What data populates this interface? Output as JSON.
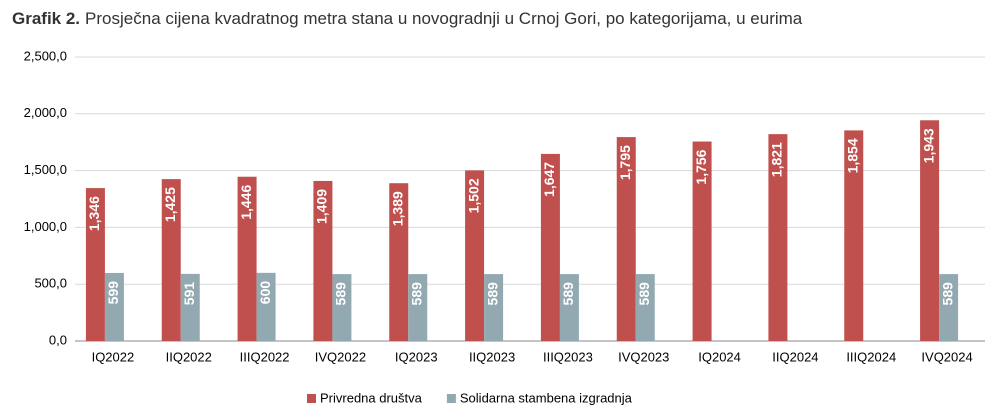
{
  "chart_data": {
    "type": "bar",
    "title_label": "Grafik 2.",
    "title": "Prosječna cijena kvadratnog metra stana u novogradnji u Crnoj Gori, po kategorijama, u eurima",
    "categories": [
      "IQ2022",
      "IIQ2022",
      "IIIQ2022",
      "IVQ2022",
      "IQ2023",
      "IIQ2023",
      "IIIQ2023",
      "IVQ2023",
      "IQ2024",
      "IIQ2024",
      "IIIQ2024",
      "IVQ2024"
    ],
    "series": [
      {
        "name": "Privredna društva",
        "color": "#c0504d",
        "values": [
          1346,
          1425,
          1446,
          1409,
          1389,
          1502,
          1647,
          1795,
          1756,
          1821,
          1854,
          1943
        ],
        "value_labels": [
          "1,346",
          "1,425",
          "1,446",
          "1,409",
          "1,389",
          "1,502",
          "1,647",
          "1,795",
          "1,756",
          "1,821",
          "1,854",
          "1,943"
        ]
      },
      {
        "name": "Solidarna stambena izgradnja",
        "color": "#93a9b1",
        "values": [
          599,
          591,
          600,
          589,
          589,
          589,
          589,
          589,
          null,
          null,
          null,
          589
        ]
      }
    ],
    "ylim": [
      0,
      2500
    ],
    "yticks": [
      {
        "value": 0,
        "label": "0,0"
      },
      {
        "value": 500,
        "label": "500,0"
      },
      {
        "value": 1000,
        "label": "1,000,0"
      },
      {
        "value": 1500,
        "label": "1,500,0"
      },
      {
        "value": 2000,
        "label": "2,000,0"
      },
      {
        "value": 2500,
        "label": "2,500,0"
      }
    ],
    "grid": true
  }
}
